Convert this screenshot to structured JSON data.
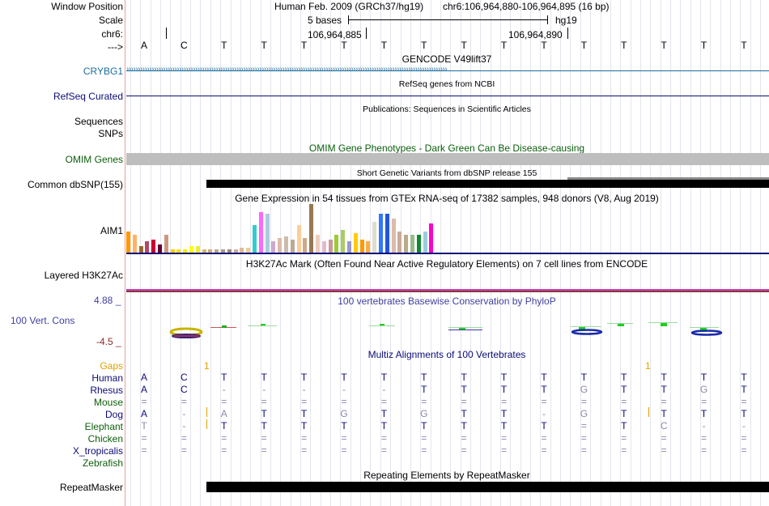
{
  "header": {
    "window_position_label": "Window Position",
    "scale_label": "Scale",
    "chrom_label": "chr6:",
    "strand_label": "--->",
    "assembly": "Human Feb. 2009 (GRCh37/hg19)",
    "position": "chr6:106,964,880-106,964,895 (16 bp)",
    "scale_text": "5 bases",
    "scale_db": "hg19",
    "coord_1": "106,964,885",
    "coord_2": "106,964,890"
  },
  "bases": [
    "A",
    "C",
    "T",
    "T",
    "T",
    "T",
    "T",
    "T",
    "T",
    "T",
    "T",
    "T",
    "T",
    "T",
    "T",
    "T"
  ],
  "tracks": {
    "gencode": {
      "title": "GENCODE V49lift37",
      "gene_label": "CRYBG1",
      "color": "#1a6e9e"
    },
    "refseq": {
      "title": "RefSeq genes from NCBI",
      "label": "RefSeq Curated",
      "color": "#0c0c78"
    },
    "publications": {
      "title": "Publications: Sequences in Scientific Articles",
      "label1": "Sequences",
      "label2": "SNPs"
    },
    "omim": {
      "title": "OMIM Gene Phenotypes - Dark Green Can Be Disease-causing",
      "label": "OMIM Genes",
      "color": "#0b5e0b"
    },
    "dbsnp": {
      "title": "Short Genetic Variants from dbSNP release 155",
      "label": "Common dbSNP(155)"
    },
    "gtex": {
      "title": "Gene Expression in 54 tissues from GTEx RNA-seq of 17382 samples, 948 donors (V8, Aug 2019)",
      "label": "AIM1"
    },
    "h3k27ac": {
      "title": "H3K27Ac Mark (Often Found Near Active Regulatory Elements) on 7 cell lines from ENCODE",
      "label": "Layered H3K27Ac"
    },
    "phylop": {
      "title": "100 vertebrates Basewise Conservation by PhyloP",
      "label": "100 Vert. Cons",
      "max": "4.88 _",
      "min": "-4.5 _",
      "color": "#3f3fa0",
      "min_color": "#8b2a2a"
    },
    "multiz": {
      "title": "Multiz Alignments of 100 Vertebrates",
      "gaps_label": "Gaps",
      "gap_1": "1",
      "gap_2": "1"
    },
    "repeatmasker": {
      "title": "Repeating Elements by RepeatMasker",
      "label": "RepeatMasker"
    }
  },
  "species": [
    {
      "name": "Human",
      "color": "#0c0c78",
      "seq": [
        "A",
        "C",
        "T",
        "T",
        "T",
        "T",
        "T",
        "T",
        "T",
        "T",
        "T",
        "T",
        "T",
        "T",
        "T",
        "T"
      ]
    },
    {
      "name": "Rhesus",
      "color": "#0c0c78",
      "seq": [
        "A",
        "C",
        "-",
        "-",
        "-",
        "-",
        "-",
        "T",
        "T",
        "T",
        "T",
        "G",
        "T",
        "T",
        "G",
        "T"
      ]
    },
    {
      "name": "Mouse",
      "color": "#0b5e0b",
      "seq": [
        "=",
        "=",
        "=",
        "=",
        "=",
        "=",
        "=",
        "=",
        "=",
        "=",
        "=",
        "=",
        "=",
        "=",
        "=",
        "="
      ]
    },
    {
      "name": "Dog",
      "color": "#0c0c78",
      "seq": [
        "A",
        "-",
        "A",
        "T",
        "T",
        "G",
        "T",
        "G",
        "T",
        "T",
        "-",
        "G",
        "T",
        "T",
        "T",
        "T"
      ]
    },
    {
      "name": "Elephant",
      "color": "#0b5e0b",
      "seq": [
        "T",
        "-",
        "T",
        "T",
        "T",
        "T",
        "T",
        "T",
        "T",
        "T",
        "T",
        "=",
        "T",
        "C",
        "-",
        "-"
      ]
    },
    {
      "name": "Chicken",
      "color": "#0b5e0b",
      "seq": [
        "=",
        "=",
        "=",
        "=",
        "=",
        "=",
        "=",
        "=",
        "=",
        "=",
        "=",
        "=",
        "=",
        "=",
        "=",
        "="
      ]
    },
    {
      "name": "X_tropicalis",
      "color": "#0c0c78",
      "seq": [
        "=",
        "=",
        "=",
        "=",
        "=",
        "=",
        "=",
        "=",
        "=",
        "=",
        "=",
        "=",
        "=",
        "=",
        "=",
        "="
      ]
    },
    {
      "name": "Zebrafish",
      "color": "#0b5e0b",
      "seq": [
        "",
        "",
        "",
        "",
        "",
        "",
        "",
        "",
        "",
        "",
        "",
        "",
        "",
        "",
        "",
        ""
      ]
    }
  ],
  "gtex_bars": [
    {
      "h": 26,
      "c": "#ff9900"
    },
    {
      "h": 22,
      "c": "#ffb366"
    },
    {
      "h": 8,
      "c": "#996633"
    },
    {
      "h": 14,
      "c": "#b34766"
    },
    {
      "h": 16,
      "c": "#cc0033"
    },
    {
      "h": 10,
      "c": "#660033"
    },
    {
      "h": 22,
      "c": "#cc9980"
    },
    {
      "h": 4,
      "c": "#ffcc00"
    },
    {
      "h": 4,
      "c": "#ffdd00"
    },
    {
      "h": 4,
      "c": "#eeee00"
    },
    {
      "h": 8,
      "c": "#ffff00"
    },
    {
      "h": 8,
      "c": "#eeee33"
    },
    {
      "h": 4,
      "c": "#ccbb66"
    },
    {
      "h": 4,
      "c": "#ccaa77"
    },
    {
      "h": 4,
      "c": "#bbaa88"
    },
    {
      "h": 4,
      "c": "#aa9988"
    },
    {
      "h": 4,
      "c": "#99887b"
    },
    {
      "h": 4,
      "c": "#ccaa99"
    },
    {
      "h": 6,
      "c": "#ddbb99"
    },
    {
      "h": 6,
      "c": "#eecc99"
    },
    {
      "h": 34,
      "c": "#33cccc"
    },
    {
      "h": 50,
      "c": "#ff66ff"
    },
    {
      "h": 48,
      "c": "#aaccdd"
    },
    {
      "h": 14,
      "c": "#ccaacc"
    },
    {
      "h": 18,
      "c": "#ddbbaa"
    },
    {
      "h": 20,
      "c": "#ccbbaa"
    },
    {
      "h": 16,
      "c": "#bbaa99"
    },
    {
      "h": 34,
      "c": "#ffcc99"
    },
    {
      "h": 18,
      "c": "#ccaa88"
    },
    {
      "h": 60,
      "c": "#997755"
    },
    {
      "h": 22,
      "c": "#eeccbb"
    },
    {
      "h": 14,
      "c": "#ddbbcc"
    },
    {
      "h": 16,
      "c": "#cc9999"
    },
    {
      "h": 22,
      "c": "#99cc33"
    },
    {
      "h": 28,
      "c": "#aacc66"
    },
    {
      "h": 14,
      "c": "#9999cc"
    },
    {
      "h": 24,
      "c": "#ffcc00"
    },
    {
      "h": 16,
      "c": "#ff9900"
    },
    {
      "h": 14,
      "c": "#ffaa44"
    },
    {
      "h": 38,
      "c": "#ddddcc"
    },
    {
      "h": 48,
      "c": "#3377ff"
    },
    {
      "h": 48,
      "c": "#2255dd"
    },
    {
      "h": 42,
      "c": "#ddbbaa"
    },
    {
      "h": 26,
      "c": "#ccaa99"
    },
    {
      "h": 22,
      "c": "#bbaa88"
    },
    {
      "h": 22,
      "c": "#99bb88"
    },
    {
      "h": 22,
      "c": "#118833"
    },
    {
      "h": 26,
      "c": "#99ccdd"
    },
    {
      "h": 36,
      "c": "#ff00cc"
    }
  ]
}
